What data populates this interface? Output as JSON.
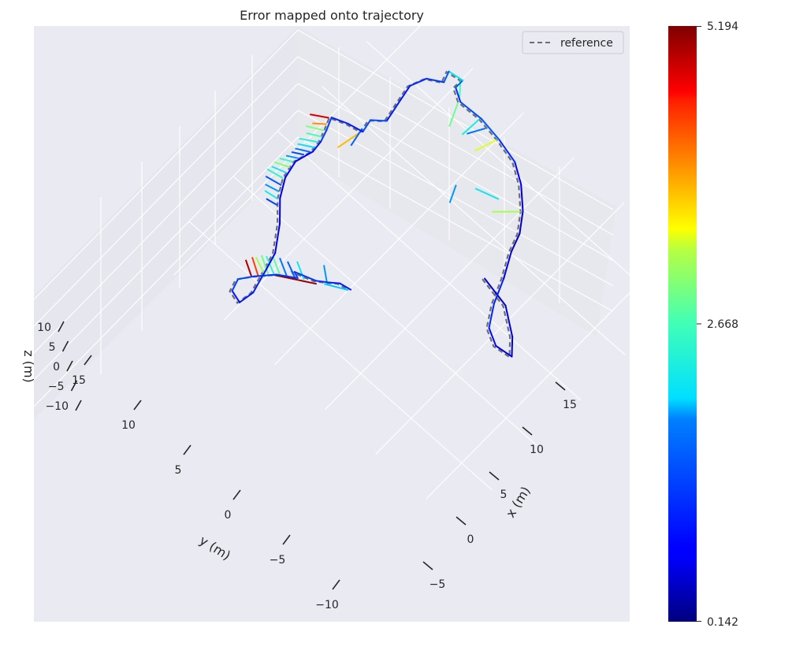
{
  "chart_data": {
    "type": "line",
    "projection": "3d",
    "title": "Error mapped onto trajectory",
    "xlabel": "x (m)",
    "ylabel": "y (m)",
    "zlabel": "z (m)",
    "xlim": [
      -9,
      19
    ],
    "ylim": [
      -13,
      17
    ],
    "zlim": [
      -12,
      12
    ],
    "x_ticks": [
      "−5",
      "0",
      "5",
      "10",
      "15"
    ],
    "y_ticks": [
      "−10",
      "−5",
      "0",
      "5",
      "10",
      "15"
    ],
    "z_ticks": [
      "−10",
      "−5",
      "0",
      "5",
      "10"
    ],
    "grid": true,
    "legend": {
      "placement": "top-right",
      "entries": [
        {
          "label": "reference",
          "style": "dashed",
          "color": "#6e6e6e"
        }
      ]
    },
    "colorbar": {
      "colormap": "jet",
      "min_label": "0.142",
      "mid_label": "2.668",
      "max_label": "5.194",
      "min": 0.142,
      "max": 5.194
    },
    "series": [
      {
        "name": "reference",
        "style": "dashed",
        "color": "#6e6e6e",
        "points": [
          [
            7.0,
            -1.5,
            0
          ],
          [
            6.5,
            -4.0,
            0
          ],
          [
            5.0,
            -6.0,
            0
          ],
          [
            3.8,
            -7.0,
            0
          ],
          [
            3.6,
            -5.6,
            0
          ],
          [
            4.3,
            -4.3,
            0
          ],
          [
            6.0,
            -3.3,
            0
          ],
          [
            8.0,
            -2.5,
            0
          ],
          [
            10.0,
            -1.5,
            0
          ],
          [
            11.5,
            -1.0,
            0
          ],
          [
            13.0,
            0.0,
            0
          ],
          [
            14.5,
            1.5,
            0
          ],
          [
            15.5,
            3.0,
            0
          ],
          [
            16.0,
            5.0,
            0
          ],
          [
            16.3,
            7.0,
            0
          ],
          [
            16.2,
            9.0,
            0
          ],
          [
            16.8,
            10.0,
            0
          ],
          [
            17.6,
            10.0,
            0
          ],
          [
            17.4,
            11.2,
            0
          ],
          [
            16.5,
            10.9,
            0
          ],
          [
            15.8,
            12.0,
            0
          ],
          [
            14.5,
            12.5,
            0
          ],
          [
            12.8,
            12.2,
            0
          ],
          [
            11.2,
            11.9,
            0
          ],
          [
            10.4,
            12.8,
            0
          ],
          [
            9.3,
            12.6,
            0
          ],
          [
            9.0,
            13.8,
            0
          ],
          [
            8.5,
            15.0,
            0
          ],
          [
            7.5,
            14.6,
            0
          ],
          [
            6.5,
            14.3,
            0
          ],
          [
            5.5,
            14.2,
            0
          ],
          [
            4.0,
            14.6,
            0
          ],
          [
            2.5,
            14.3,
            0
          ],
          [
            1.0,
            13.5,
            0
          ],
          [
            -0.5,
            12.2,
            0
          ],
          [
            -2.5,
            10.9,
            0
          ],
          [
            -4.0,
            10.5,
            0
          ],
          [
            -6.0,
            10.0,
            0
          ],
          [
            -7.3,
            10.2,
            0
          ],
          [
            -7.0,
            11.2,
            0
          ],
          [
            -6.0,
            11.5,
            0
          ],
          [
            -5.0,
            10.8,
            0
          ],
          [
            -3.7,
            9.7,
            0
          ],
          [
            -2.8,
            8.4,
            0
          ],
          [
            -2.6,
            8.9,
            0
          ],
          [
            -2.0,
            7.3,
            0
          ],
          [
            -1.4,
            6.5,
            0
          ],
          [
            -0.9,
            5.9,
            0
          ],
          [
            -0.7,
            5.0,
            0
          ]
        ]
      },
      {
        "name": "",
        "style": "colored-by-error",
        "points": [
          [
            7.0,
            -1.5,
            0,
            0.4
          ],
          [
            6.5,
            -4.0,
            0,
            0.5
          ],
          [
            5.0,
            -6.0,
            0,
            0.6
          ],
          [
            3.8,
            -7.0,
            0,
            0.5
          ],
          [
            3.6,
            -5.6,
            0,
            0.7
          ],
          [
            4.3,
            -4.3,
            0,
            0.9
          ],
          [
            6.0,
            -3.3,
            0,
            1.2
          ],
          [
            8.0,
            -2.5,
            0,
            0.8
          ],
          [
            10.0,
            -1.5,
            0,
            0.4
          ],
          [
            11.5,
            -1.0,
            0,
            0.4
          ],
          [
            13.0,
            0.0,
            0,
            0.5
          ],
          [
            14.5,
            1.5,
            0,
            0.6
          ],
          [
            15.5,
            3.0,
            0,
            0.8
          ],
          [
            16.0,
            5.0,
            0,
            1.4
          ],
          [
            16.3,
            7.0,
            0,
            1.6
          ],
          [
            16.2,
            9.0,
            0,
            1.2
          ],
          [
            16.8,
            10.0,
            0,
            1.0
          ],
          [
            17.6,
            10.0,
            0,
            2.2
          ],
          [
            17.4,
            11.2,
            0,
            2.0
          ],
          [
            16.5,
            10.9,
            0,
            1.1
          ],
          [
            15.8,
            12.0,
            0,
            1.3
          ],
          [
            14.5,
            12.5,
            0,
            0.9
          ],
          [
            12.8,
            12.2,
            0,
            0.9
          ],
          [
            11.2,
            11.9,
            0,
            1.0
          ],
          [
            10.4,
            12.8,
            0,
            1.8
          ],
          [
            9.3,
            12.6,
            0,
            1.0
          ],
          [
            9.0,
            13.8,
            0,
            0.8
          ],
          [
            8.5,
            15.0,
            0,
            1.2
          ],
          [
            7.5,
            14.6,
            0,
            1.4
          ],
          [
            6.5,
            14.3,
            0,
            1.1
          ],
          [
            5.5,
            14.2,
            0,
            0.6
          ],
          [
            4.0,
            14.6,
            0,
            0.8
          ],
          [
            2.5,
            14.3,
            0,
            0.7
          ],
          [
            1.0,
            13.5,
            0,
            0.5
          ],
          [
            -0.5,
            12.2,
            0,
            0.6
          ],
          [
            -2.5,
            10.9,
            0,
            0.6
          ],
          [
            -4.0,
            10.5,
            0,
            0.9
          ],
          [
            -6.0,
            10.0,
            0,
            1.0
          ],
          [
            -7.3,
            10.2,
            0,
            0.8
          ],
          [
            -7.0,
            11.2,
            0,
            1.0
          ],
          [
            -6.0,
            11.5,
            0,
            1.5
          ],
          [
            -5.0,
            10.8,
            0,
            1.2
          ],
          [
            -3.7,
            9.7,
            0,
            1.1
          ],
          [
            -2.8,
            8.4,
            0,
            1.2
          ],
          [
            -2.6,
            8.9,
            0,
            1.4
          ],
          [
            -2.0,
            7.3,
            0,
            1.0
          ],
          [
            -1.4,
            6.5,
            0,
            1.1
          ],
          [
            -0.9,
            5.9,
            0,
            0.9
          ],
          [
            -0.7,
            5.0,
            0,
            1.0
          ]
        ]
      }
    ],
    "error_segments": [
      {
        "from": [
          16.0,
          5.0,
          0
        ],
        "to": [
          14.2,
          5.6,
          0
        ],
        "error": 3.4
      },
      {
        "from": [
          16.3,
          7.0,
          0
        ],
        "to": [
          14.5,
          7.1,
          0
        ],
        "error": 2.3
      },
      {
        "from": [
          16.1,
          6.2,
          0
        ],
        "to": [
          14.8,
          6.9,
          0
        ],
        "error": 1.8
      },
      {
        "from": [
          16.2,
          9.0,
          0
        ],
        "to": [
          14.3,
          8.2,
          0
        ],
        "error": 2.9
      },
      {
        "from": [
          13.0,
          0.0,
          0
        ],
        "to": [
          11.5,
          1.5,
          0
        ],
        "error": 3.2
      },
      {
        "from": [
          12.6,
          1.8,
          0
        ],
        "to": [
          12.0,
          3.6,
          0
        ],
        "error": 2.2
      },
      {
        "from": [
          11.2,
          4.8,
          0
        ],
        "to": [
          9.8,
          4.2,
          0
        ],
        "error": 1.9
      },
      {
        "from": [
          17.6,
          10.0,
          0
        ],
        "to": [
          16.6,
          9.2,
          0
        ],
        "error": 2.6
      },
      {
        "from": [
          8.5,
          15.0,
          0
        ],
        "to": [
          7.7,
          16.2,
          0
        ],
        "error": 4.8
      },
      {
        "from": [
          8.0,
          14.8,
          0
        ],
        "to": [
          7.3,
          15.6,
          0
        ],
        "error": 4.0
      },
      {
        "from": [
          7.5,
          14.6,
          0
        ],
        "to": [
          6.8,
          15.8,
          0
        ],
        "error": 3.0
      },
      {
        "from": [
          7.0,
          14.4,
          0
        ],
        "to": [
          6.4,
          15.4,
          0
        ],
        "error": 2.7
      },
      {
        "from": [
          6.5,
          14.3,
          0
        ],
        "to": [
          5.7,
          15.5,
          0
        ],
        "error": 2.4
      },
      {
        "from": [
          6.0,
          14.2,
          0
        ],
        "to": [
          5.3,
          15.3,
          0
        ],
        "error": 2.1
      },
      {
        "from": [
          5.5,
          14.2,
          0
        ],
        "to": [
          4.9,
          15.2,
          0
        ],
        "error": 1.7
      },
      {
        "from": [
          5.0,
          14.4,
          0
        ],
        "to": [
          4.5,
          15.2,
          0
        ],
        "error": 1.4
      },
      {
        "from": [
          4.5,
          14.5,
          0
        ],
        "to": [
          4.0,
          15.3,
          0
        ],
        "error": 1.9
      },
      {
        "from": [
          4.0,
          14.6,
          0
        ],
        "to": [
          3.5,
          15.5,
          0
        ],
        "error": 2.6
      },
      {
        "from": [
          3.5,
          14.5,
          0
        ],
        "to": [
          3.0,
          15.6,
          0
        ],
        "error": 3.0
      },
      {
        "from": [
          3.0,
          14.4,
          0
        ],
        "to": [
          2.6,
          15.5,
          0
        ],
        "error": 2.2
      },
      {
        "from": [
          2.5,
          14.3,
          0
        ],
        "to": [
          2.2,
          15.6,
          0
        ],
        "error": 2.5
      },
      {
        "from": [
          2.0,
          14.0,
          0
        ],
        "to": [
          1.7,
          15.3,
          0
        ],
        "error": 1.5
      },
      {
        "from": [
          1.5,
          13.8,
          0
        ],
        "to": [
          1.2,
          14.9,
          0
        ],
        "error": 1.9
      },
      {
        "from": [
          1.0,
          13.5,
          0
        ],
        "to": [
          0.8,
          14.6,
          0
        ],
        "error": 2.3
      },
      {
        "from": [
          0.6,
          13.2,
          0
        ],
        "to": [
          0.4,
          14.1,
          0
        ],
        "error": 1.3
      },
      {
        "from": [
          9.3,
          12.6,
          0
        ],
        "to": [
          7.2,
          13.0,
          0
        ],
        "error": 3.8
      },
      {
        "from": [
          9.6,
          12.7,
          0
        ],
        "to": [
          8.0,
          12.4,
          0
        ],
        "error": 1.6
      },
      {
        "from": [
          -5.0,
          10.8,
          0
        ],
        "to": [
          -4.3,
          12.0,
          0
        ],
        "error": 5.0
      },
      {
        "from": [
          -4.6,
          10.5,
          0
        ],
        "to": [
          -3.8,
          11.8,
          0
        ],
        "error": 4.4
      },
      {
        "from": [
          -4.2,
          10.2,
          0
        ],
        "to": [
          -3.6,
          11.6,
          0
        ],
        "error": 3.2
      },
      {
        "from": [
          -4.0,
          10.0,
          0
        ],
        "to": [
          -3.2,
          11.4,
          0
        ],
        "error": 2.9
      },
      {
        "from": [
          -3.7,
          9.7,
          0
        ],
        "to": [
          -3.0,
          11.1,
          0
        ],
        "error": 2.5
      },
      {
        "from": [
          -3.4,
          9.4,
          0
        ],
        "to": [
          -2.7,
          10.7,
          0
        ],
        "error": 2.8
      },
      {
        "from": [
          -3.1,
          9.0,
          0
        ],
        "to": [
          -2.4,
          10.3,
          0
        ],
        "error": 1.8
      },
      {
        "from": [
          -2.8,
          8.4,
          0
        ],
        "to": [
          -2.2,
          9.7,
          0
        ],
        "error": 1.6
      },
      {
        "from": [
          -2.4,
          7.9,
          0
        ],
        "to": [
          -1.7,
          9.2,
          0
        ],
        "error": 2.2
      },
      {
        "from": [
          -1.4,
          6.5,
          0
        ],
        "to": [
          -0.5,
          7.6,
          0
        ],
        "error": 1.9
      },
      {
        "from": [
          -3.7,
          9.7,
          0
        ],
        "to": [
          -2.0,
          7.0,
          0
        ],
        "error": 5.1
      },
      {
        "from": [
          -0.7,
          5.0,
          0
        ],
        "to": [
          -1.6,
          6.6,
          0
        ],
        "error": 2.0
      }
    ]
  }
}
